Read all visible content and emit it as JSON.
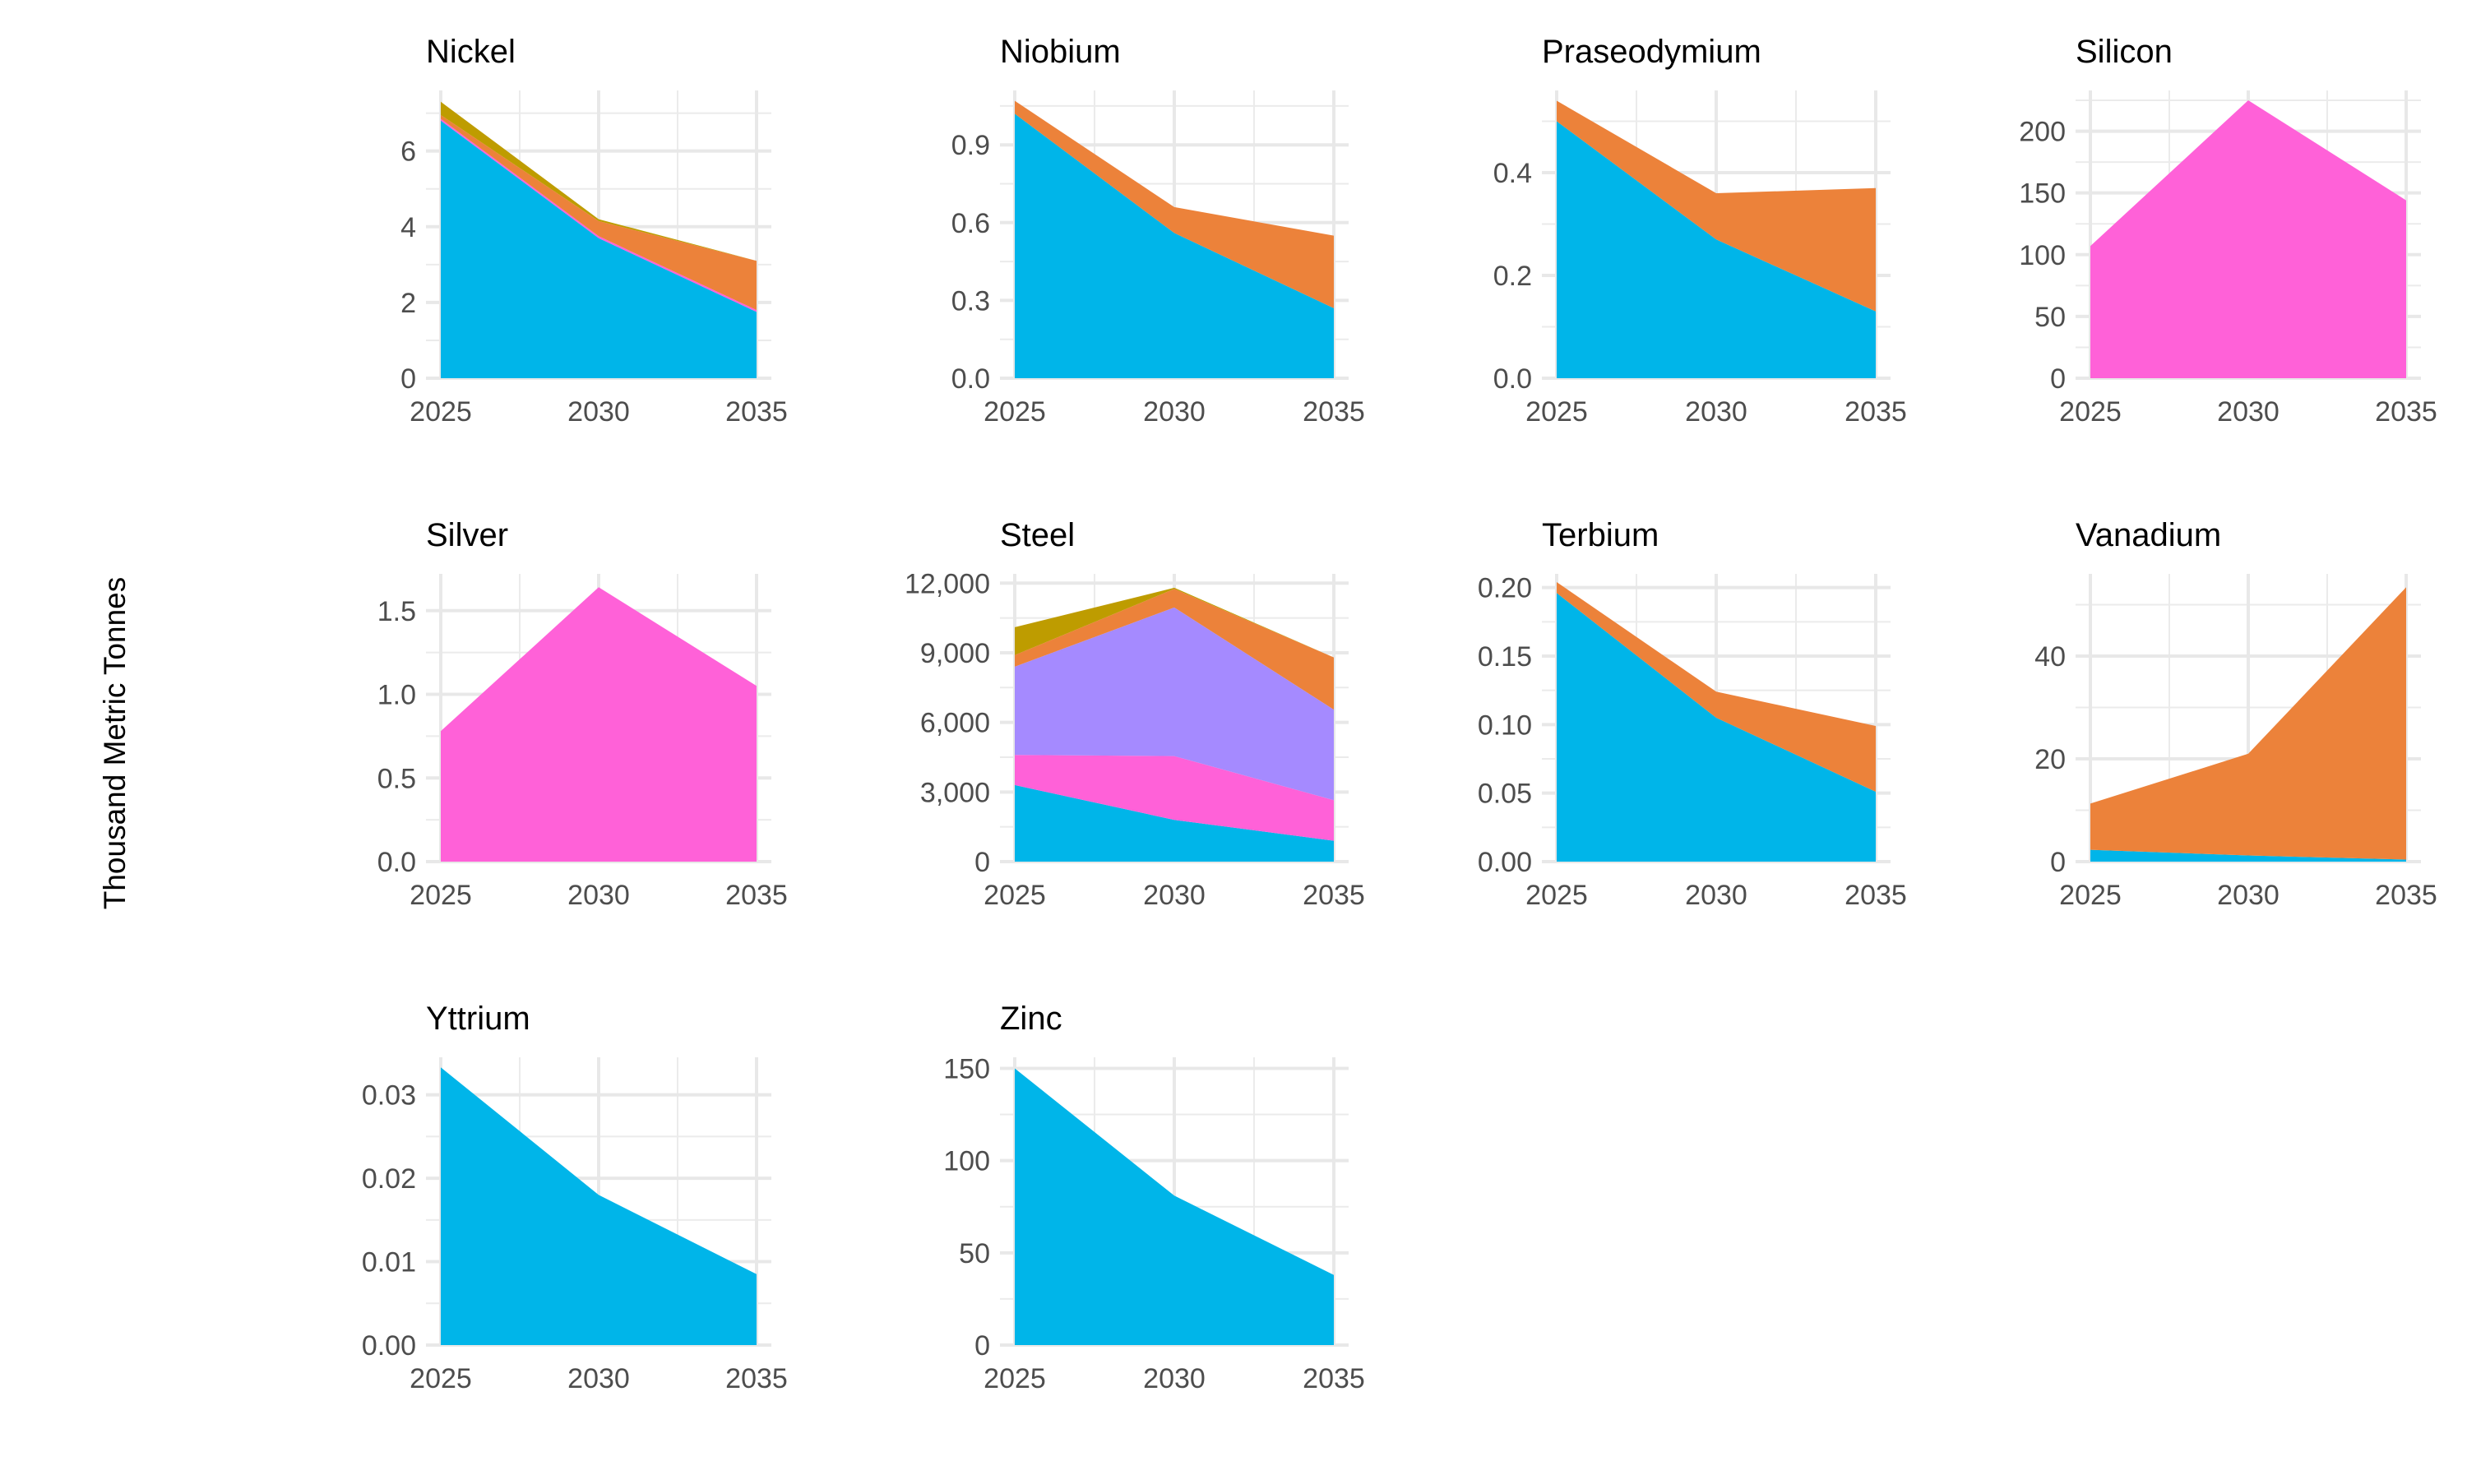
{
  "chart_data": {
    "type": "area",
    "stacked": true,
    "ylabel": "Thousand Metric Tonnes",
    "x": [
      2025,
      2030,
      2035
    ],
    "colors": [
      "#00B5E9",
      "#FF61D8",
      "#A58AFF",
      "#EC823A",
      "#BE9C00"
    ],
    "facets": [
      {
        "title": "Nickel",
        "ylim": [
          0,
          7.6
        ],
        "ticks": [
          0,
          2,
          4,
          6
        ],
        "tick_labels": [
          "0",
          "2",
          "4",
          "6"
        ],
        "series": [
          {
            "values": [
              6.8,
              3.7,
              1.75
            ],
            "color": "#00B5E9"
          },
          {
            "values": [
              0.05,
              0.05,
              0.05
            ],
            "color": "#FF61D8"
          },
          {
            "values": [
              0.1,
              0.4,
              1.3
            ],
            "color": "#EC823A"
          },
          {
            "values": [
              0.35,
              0.05,
              0.0
            ],
            "color": "#BE9C00"
          }
        ]
      },
      {
        "title": "Niobium",
        "ylim": [
          0,
          1.11
        ],
        "ticks": [
          0,
          0.3,
          0.6,
          0.9
        ],
        "tick_labels": [
          "0.0",
          "0.3",
          "0.6",
          "0.9"
        ],
        "series": [
          {
            "values": [
              1.02,
              0.56,
              0.27
            ],
            "color": "#00B5E9"
          },
          {
            "values": [
              0.05,
              0.1,
              0.28
            ],
            "color": "#EC823A"
          }
        ]
      },
      {
        "title": "Praseodymium",
        "ylim": [
          0,
          0.56
        ],
        "ticks": [
          0,
          0.2,
          0.4
        ],
        "tick_labels": [
          "0.0",
          "0.2",
          "0.4"
        ],
        "series": [
          {
            "values": [
              0.5,
              0.27,
              0.13
            ],
            "color": "#00B5E9"
          },
          {
            "values": [
              0.04,
              0.09,
              0.24
            ],
            "color": "#EC823A"
          }
        ]
      },
      {
        "title": "Silicon",
        "ylim": [
          0,
          233
        ],
        "ticks": [
          0,
          50,
          100,
          150,
          200
        ],
        "tick_labels": [
          "0",
          "50",
          "100",
          "150",
          "200"
        ],
        "series": [
          {
            "values": [
              107,
              225,
              144
            ],
            "color": "#FF61D8"
          }
        ]
      },
      {
        "title": "Silver",
        "ylim": [
          0,
          1.72
        ],
        "ticks": [
          0,
          0.5,
          1.0,
          1.5
        ],
        "tick_labels": [
          "0.0",
          "0.5",
          "1.0",
          "1.5"
        ],
        "series": [
          {
            "values": [
              0.78,
              1.64,
              1.05
            ],
            "color": "#FF61D8"
          }
        ]
      },
      {
        "title": "Steel",
        "ylim": [
          0,
          12400
        ],
        "ticks": [
          0,
          3000,
          6000,
          9000,
          12000
        ],
        "tick_labels": [
          "0",
          "3,000",
          "6,000",
          "9,000",
          "12,000"
        ],
        "series": [
          {
            "values": [
              3300,
              1800,
              900
            ],
            "color": "#00B5E9"
          },
          {
            "values": [
              1300,
              2750,
              1750
            ],
            "color": "#FF61D8"
          },
          {
            "values": [
              3800,
              6400,
              3900
            ],
            "color": "#A58AFF"
          },
          {
            "values": [
              500,
              800,
              2250
            ],
            "color": "#EC823A"
          },
          {
            "values": [
              1200,
              50,
              0
            ],
            "color": "#BE9C00"
          }
        ]
      },
      {
        "title": "Terbium",
        "ylim": [
          0,
          0.21
        ],
        "ticks": [
          0,
          0.05,
          0.1,
          0.15,
          0.2
        ],
        "tick_labels": [
          "0.00",
          "0.05",
          "0.10",
          "0.15",
          "0.20"
        ],
        "series": [
          {
            "values": [
              0.196,
              0.105,
              0.051
            ],
            "color": "#00B5E9"
          },
          {
            "values": [
              0.008,
              0.019,
              0.048
            ],
            "color": "#EC823A"
          }
        ]
      },
      {
        "title": "Vanadium",
        "ylim": [
          0,
          56
        ],
        "ticks": [
          0,
          20,
          40
        ],
        "tick_labels": [
          "0",
          "20",
          "40"
        ],
        "series": [
          {
            "values": [
              2.3,
              1.2,
              0.4
            ],
            "color": "#00B5E9"
          },
          {
            "values": [
              9.0,
              19.8,
              53.0
            ],
            "color": "#EC823A"
          }
        ]
      },
      {
        "title": "Yttrium",
        "ylim": [
          0,
          0.0345
        ],
        "ticks": [
          0,
          0.01,
          0.02,
          0.03
        ],
        "tick_labels": [
          "0.00",
          "0.01",
          "0.02",
          "0.03"
        ],
        "series": [
          {
            "values": [
              0.0333,
              0.018,
              0.0085
            ],
            "color": "#00B5E9"
          }
        ]
      },
      {
        "title": "Zinc",
        "ylim": [
          0,
          156
        ],
        "ticks": [
          0,
          50,
          100,
          150
        ],
        "tick_labels": [
          "0",
          "50",
          "100",
          "150"
        ],
        "series": [
          {
            "values": [
              150,
              81,
              38
            ],
            "color": "#00B5E9"
          }
        ]
      }
    ]
  }
}
